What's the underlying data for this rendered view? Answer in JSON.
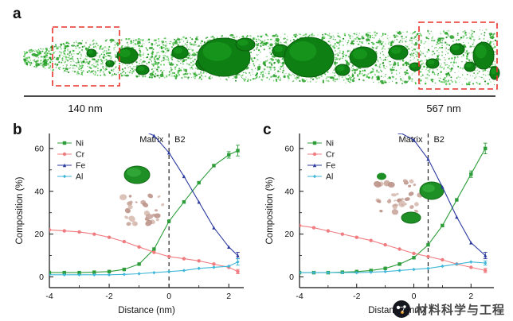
{
  "figure": {
    "panel_labels": {
      "a": "a",
      "b": "b",
      "c": "c"
    },
    "panel_a": {
      "description": "atom-probe-tomography-needle-reconstruction",
      "highlight_color": "#e8322a",
      "scale": {
        "left": "140 nm",
        "right": "567 nm"
      }
    },
    "watermark": {
      "text": "材料科学与工程"
    }
  },
  "chart_data": [
    {
      "panel": "b",
      "type": "line",
      "title": "",
      "xlabel": "Distance (nm)",
      "ylabel": "Composition (%)",
      "xlim": [
        -4,
        2.5
      ],
      "ylim": [
        -5,
        67
      ],
      "xticks": [
        -4,
        -2,
        0,
        2
      ],
      "yticks": [
        0,
        20,
        40,
        60
      ],
      "dashed_x": 0,
      "region_labels": {
        "left": "Matrix",
        "right": "B2"
      },
      "legend_position": "top-left",
      "grid": false,
      "x": [
        -4,
        -3.5,
        -3,
        -2.5,
        -2,
        -1.5,
        -1,
        -0.5,
        0,
        0.5,
        1,
        1.5,
        2,
        2.3
      ],
      "series": [
        {
          "name": "Ni",
          "color": "#2d9d3a",
          "marker": "square",
          "values": [
            2,
            2,
            2,
            2.2,
            2.5,
            3.5,
            6,
            13,
            26,
            35,
            44,
            52,
            57,
            59
          ],
          "err": [
            0,
            0,
            0,
            0,
            0,
            0,
            0,
            0,
            0,
            0,
            0,
            0,
            1.5,
            2.5
          ]
        },
        {
          "name": "Cr",
          "color": "#f07c80",
          "marker": "circle",
          "values": [
            22,
            21.5,
            21,
            20,
            18.5,
            16.5,
            14,
            11.5,
            9.5,
            8.5,
            7.5,
            6,
            4.5,
            2.5
          ],
          "err": [
            0,
            0,
            0,
            0,
            0,
            0,
            0,
            0,
            0,
            0,
            0,
            0,
            0,
            1
          ]
        },
        {
          "name": "Fe",
          "color": "#2b3a9f",
          "marker": "triangle",
          "values": [
            72,
            72,
            72,
            71.5,
            71,
            70,
            69,
            66,
            58,
            47,
            35,
            23,
            14,
            10
          ],
          "err": [
            0,
            0,
            0,
            0,
            0,
            0,
            0,
            0,
            0,
            0,
            0,
            0,
            0,
            1.5
          ]
        },
        {
          "name": "Al",
          "color": "#3fb6d9",
          "marker": "diamond",
          "values": [
            1,
            1,
            1,
            1,
            1,
            1.2,
            1.5,
            2,
            2.5,
            3,
            4,
            4.5,
            5,
            7
          ],
          "err": [
            0,
            0,
            0,
            0,
            0,
            0,
            0,
            0,
            0,
            0,
            0,
            0,
            0,
            1.5
          ]
        }
      ]
    },
    {
      "panel": "c",
      "type": "line",
      "title": "",
      "xlabel": "Distance (nm)",
      "ylabel": "Composition (%)",
      "xlim": [
        -4,
        2.8
      ],
      "ylim": [
        -5,
        67
      ],
      "xticks": [
        -4,
        -2,
        0,
        2
      ],
      "yticks": [
        0,
        20,
        40,
        60
      ],
      "dashed_x": 0.5,
      "region_labels": {
        "left": "Matrix",
        "right": "B2"
      },
      "legend_position": "top-left",
      "grid": false,
      "x": [
        -4,
        -3.5,
        -3,
        -2.5,
        -2,
        -1.5,
        -1,
        -0.5,
        0,
        0.5,
        1,
        1.5,
        2,
        2.5
      ],
      "series": [
        {
          "name": "Ni",
          "color": "#2d9d3a",
          "marker": "square",
          "values": [
            2,
            2,
            2,
            2.2,
            2.5,
            3,
            4,
            6,
            9,
            15,
            24,
            36,
            48,
            60
          ],
          "err": [
            0,
            0,
            0,
            0,
            0,
            0,
            0,
            0,
            0,
            0,
            0,
            0,
            1.5,
            2.5
          ]
        },
        {
          "name": "Cr",
          "color": "#f07c80",
          "marker": "circle",
          "values": [
            24,
            23,
            21.5,
            20,
            18.5,
            17,
            15,
            13,
            11,
            9.5,
            8,
            6,
            4.5,
            3
          ],
          "err": [
            0,
            0,
            0,
            0,
            0,
            0,
            0,
            0,
            0,
            0,
            0,
            0,
            0,
            1
          ]
        },
        {
          "name": "Fe",
          "color": "#2b3a9f",
          "marker": "triangle",
          "values": [
            72,
            72,
            71.5,
            71,
            70.5,
            70,
            69,
            67.5,
            64,
            55,
            42,
            28,
            16,
            10
          ],
          "err": [
            0,
            0,
            0,
            0,
            0,
            0,
            0,
            0,
            0,
            0,
            0,
            0,
            0,
            1.5
          ]
        },
        {
          "name": "Al",
          "color": "#3fb6d9",
          "marker": "diamond",
          "values": [
            2,
            2,
            2,
            2,
            2,
            2.2,
            2.5,
            3,
            3.5,
            4,
            5,
            6,
            7,
            6.5
          ],
          "err": [
            0,
            0,
            0,
            0,
            0,
            0,
            0,
            0,
            0,
            0,
            0,
            0,
            0,
            1
          ]
        }
      ]
    }
  ]
}
